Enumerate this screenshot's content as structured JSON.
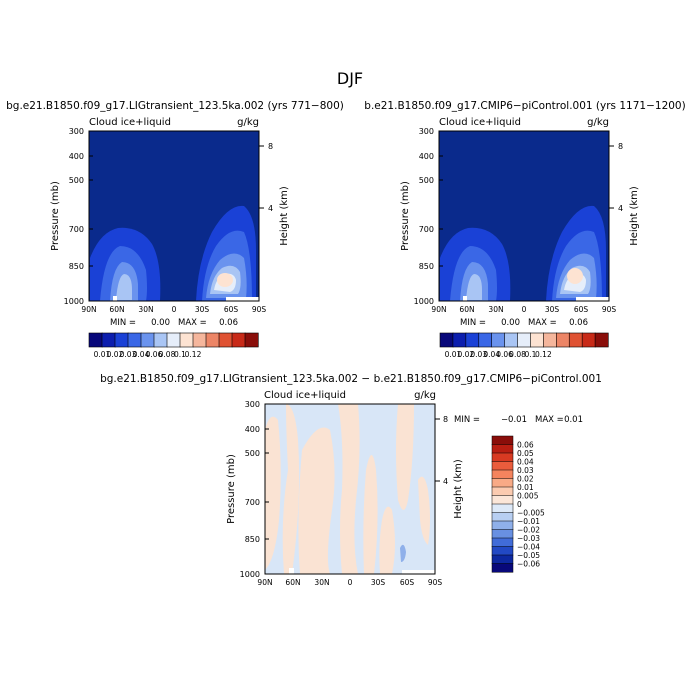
{
  "figure": {
    "title": "DJF"
  },
  "colors": {
    "background": "#ffffff",
    "plot_ocean": "#0a2a8c",
    "diff_base": "#d8e6f7",
    "diff_warm": "#fae3d3"
  },
  "chart_data": [
    {
      "type": "heatmap",
      "title": "bg.e21.B1850.f09_g17.LIGtransient_123.5ka.002 (yrs 771−800)",
      "left_title": "Cloud ice+liquid",
      "right_title": "g/kg",
      "xlabel": "",
      "ylabel": "Pressure (mb)",
      "y2label": "Height (km)",
      "x_ticks": [
        "90N",
        "60N",
        "30N",
        "0",
        "30S",
        "60S",
        "90S"
      ],
      "y_ticks": [
        "300",
        "400",
        "500",
        "700",
        "850",
        "1000"
      ],
      "y2_ticks": [
        "8",
        "4"
      ],
      "stats": {
        "min_label": "MIN =",
        "min": "0.00",
        "max_label": "MAX =",
        "max": "0.06"
      },
      "colorbar": {
        "orientation": "horizontal",
        "labels": [
          "0.01",
          "0.02",
          "0.03",
          "0.04",
          "0.06",
          "0.08",
          "0.1",
          "0.12"
        ],
        "colors": [
          "#08087a",
          "#0c1eae",
          "#1a41d6",
          "#3a67e6",
          "#6a93ee",
          "#a9c5f4",
          "#e6eefa",
          "#fde3d2",
          "#f5b69c",
          "#ec8566",
          "#df5232",
          "#c82a18",
          "#8a0e0a"
        ]
      },
      "features": [
        {
          "label": "northern maximum",
          "lat_center": 50,
          "lat_halfwidth": 23,
          "p_top": 690,
          "value": 0.03
        },
        {
          "label": "southern maximum",
          "lat_center": -50,
          "lat_halfwidth": 16,
          "p_top": 560,
          "value": 0.06
        }
      ]
    },
    {
      "type": "heatmap",
      "title": "b.e21.B1850.f09_g17.CMIP6−piControl.001 (yrs 1171−1200)",
      "left_title": "Cloud ice+liquid",
      "right_title": "g/kg",
      "xlabel": "",
      "ylabel": "Pressure (mb)",
      "y2label": "Height (km)",
      "x_ticks": [
        "90N",
        "60N",
        "30N",
        "0",
        "30S",
        "60S",
        "90S"
      ],
      "y_ticks": [
        "300",
        "400",
        "500",
        "700",
        "850",
        "1000"
      ],
      "y2_ticks": [
        "8",
        "4"
      ],
      "stats": {
        "min_label": "MIN =",
        "min": "0.00",
        "max_label": "MAX =",
        "max": "0.06"
      },
      "colorbar": {
        "orientation": "horizontal",
        "labels": [
          "0.01",
          "0.02",
          "0.03",
          "0.04",
          "0.06",
          "0.08",
          "0.1",
          "0.12"
        ],
        "colors": [
          "#08087a",
          "#0c1eae",
          "#1a41d6",
          "#3a67e6",
          "#6a93ee",
          "#a9c5f4",
          "#e6eefa",
          "#fde3d2",
          "#f5b69c",
          "#ec8566",
          "#df5232",
          "#c82a18",
          "#8a0e0a"
        ]
      },
      "features": [
        {
          "label": "northern maximum",
          "lat_center": 50,
          "lat_halfwidth": 23,
          "p_top": 690,
          "value": 0.03
        },
        {
          "label": "southern maximum",
          "lat_center": -50,
          "lat_halfwidth": 16,
          "p_top": 560,
          "value": 0.06
        }
      ]
    },
    {
      "type": "heatmap",
      "title": "bg.e21.B1850.f09_g17.LIGtransient_123.5ka.002 − b.e21.B1850.f09_g17.CMIP6−piControl.001",
      "left_title": "Cloud ice+liquid",
      "right_title": "g/kg",
      "xlabel": "",
      "ylabel": "Pressure (mb)",
      "y2label": "Height (km)",
      "x_ticks": [
        "90N",
        "60N",
        "30N",
        "0",
        "30S",
        "60S",
        "90S"
      ],
      "y_ticks": [
        "300",
        "400",
        "500",
        "700",
        "850",
        "1000"
      ],
      "y2_ticks": [
        "8",
        "4"
      ],
      "stats": {
        "min_label": "MIN =",
        "min": "−0.01",
        "max_label": "MAX =",
        "max": "0.01"
      },
      "colorbar": {
        "orientation": "vertical",
        "labels": [
          "0.06",
          "0.05",
          "0.04",
          "0.03",
          "0.02",
          "0.01",
          "0.005",
          "0",
          "−0.005",
          "−0.01",
          "−0.02",
          "−0.03",
          "−0.04",
          "−0.05",
          "−0.06"
        ],
        "colors": [
          "#8a0e0a",
          "#b81e12",
          "#d83a22",
          "#ea5c3c",
          "#f4845e",
          "#f8aa86",
          "#fbcbb0",
          "#fbe6d8",
          "#dde9f8",
          "#b8cff2",
          "#8fb0ea",
          "#6890e2",
          "#416cd8",
          "#2249c4",
          "#0d28a0",
          "#08087a"
        ]
      },
      "features": [
        {
          "label": "positive differences",
          "value": 0.005
        },
        {
          "label": "negative differences",
          "value": -0.005
        }
      ]
    }
  ]
}
